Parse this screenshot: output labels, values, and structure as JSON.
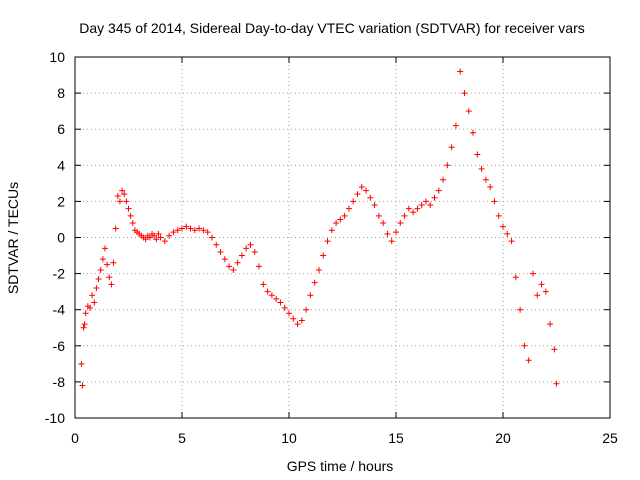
{
  "chart_data": {
    "type": "scatter",
    "title": "Day 345 of 2014, Sidereal Day-to-day VTEC variation (SDTVAR) for receiver vars",
    "xlabel": "GPS time / hours",
    "ylabel": "SDTVAR / TECUs",
    "xlim": [
      0,
      25
    ],
    "ylim": [
      -10,
      10
    ],
    "xticks": [
      0,
      5,
      10,
      15,
      20,
      25
    ],
    "yticks": [
      -10,
      -8,
      -6,
      -4,
      -2,
      0,
      2,
      4,
      6,
      8,
      10
    ],
    "grid": true,
    "marker": "+",
    "color": "#ff0000",
    "series": [
      {
        "name": "SDTVAR",
        "x": [
          0.3,
          0.35,
          0.4,
          0.45,
          0.5,
          0.6,
          0.7,
          0.8,
          0.9,
          1.0,
          1.1,
          1.2,
          1.3,
          1.4,
          1.5,
          1.6,
          1.7,
          1.8,
          1.9,
          2.0,
          2.1,
          2.2,
          2.3,
          2.4,
          2.5,
          2.6,
          2.7,
          2.8,
          2.9,
          3.0,
          3.1,
          3.2,
          3.3,
          3.4,
          3.5,
          3.6,
          3.7,
          3.8,
          3.9,
          4.0,
          4.2,
          4.4,
          4.6,
          4.8,
          5.0,
          5.2,
          5.4,
          5.6,
          5.8,
          6.0,
          6.2,
          6.4,
          6.6,
          6.8,
          7.0,
          7.2,
          7.4,
          7.6,
          7.8,
          8.0,
          8.2,
          8.4,
          8.6,
          8.8,
          9.0,
          9.2,
          9.4,
          9.6,
          9.8,
          10.0,
          10.2,
          10.4,
          10.6,
          10.8,
          11.0,
          11.2,
          11.4,
          11.6,
          11.8,
          12.0,
          12.2,
          12.4,
          12.6,
          12.8,
          13.0,
          13.2,
          13.4,
          13.6,
          13.8,
          14.0,
          14.2,
          14.4,
          14.6,
          14.8,
          15.0,
          15.2,
          15.4,
          15.6,
          15.8,
          16.0,
          16.2,
          16.4,
          16.6,
          16.8,
          17.0,
          17.2,
          17.4,
          17.6,
          17.8,
          18.0,
          18.2,
          18.4,
          18.6,
          18.8,
          19.0,
          19.2,
          19.4,
          19.6,
          19.8,
          20.0,
          20.2,
          20.4,
          20.6,
          20.8,
          21.0,
          21.2,
          21.4,
          21.6,
          21.8,
          22.0,
          22.2,
          22.4,
          22.5
        ],
        "y": [
          -7.0,
          -8.2,
          -5.0,
          -4.8,
          -4.2,
          -3.8,
          -3.9,
          -3.2,
          -3.6,
          -2.8,
          -2.3,
          -1.8,
          -1.2,
          -0.6,
          -1.5,
          -2.2,
          -2.6,
          -1.4,
          0.5,
          2.3,
          2.0,
          2.6,
          2.4,
          2.0,
          1.6,
          1.2,
          0.8,
          0.4,
          0.3,
          0.2,
          0.1,
          0.0,
          -0.1,
          0.1,
          0.0,
          0.2,
          0.1,
          -0.1,
          0.2,
          0.0,
          -0.2,
          0.1,
          0.3,
          0.4,
          0.5,
          0.6,
          0.5,
          0.4,
          0.5,
          0.4,
          0.3,
          0.0,
          -0.4,
          -0.8,
          -1.2,
          -1.6,
          -1.8,
          -1.4,
          -1.0,
          -0.6,
          -0.4,
          -0.8,
          -1.6,
          -2.6,
          -3.0,
          -3.2,
          -3.4,
          -3.6,
          -3.9,
          -4.2,
          -4.5,
          -4.8,
          -4.6,
          -4.0,
          -3.2,
          -2.5,
          -1.8,
          -1.0,
          -0.2,
          0.4,
          0.8,
          1.0,
          1.2,
          1.6,
          2.0,
          2.4,
          2.8,
          2.6,
          2.2,
          1.8,
          1.2,
          0.8,
          0.2,
          -0.2,
          0.3,
          0.8,
          1.2,
          1.6,
          1.4,
          1.6,
          1.8,
          2.0,
          1.8,
          2.2,
          2.6,
          3.2,
          4.0,
          5.0,
          6.2,
          9.2,
          8.0,
          7.0,
          5.8,
          4.6,
          3.8,
          3.2,
          2.8,
          2.0,
          1.2,
          0.6,
          0.2,
          -0.2,
          -2.2,
          -4.0,
          -6.0,
          -6.8,
          -2.0,
          -3.2,
          -2.6,
          -3.0,
          -4.8,
          -6.2,
          -8.1
        ]
      }
    ]
  }
}
